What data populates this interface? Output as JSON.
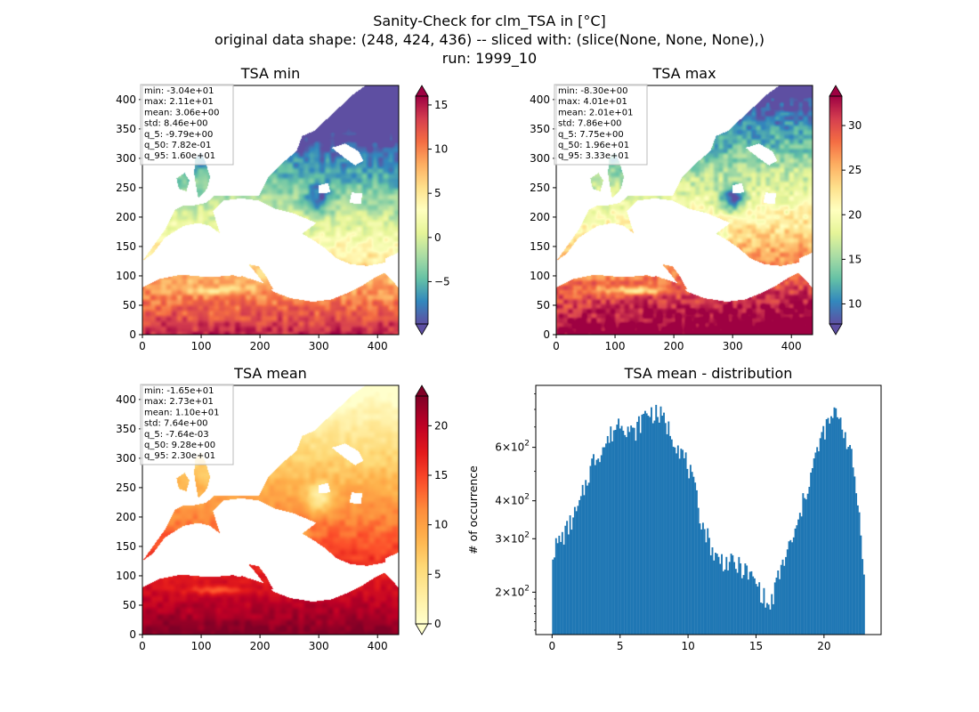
{
  "figure": {
    "title_lines": [
      "Sanity-Check for clm_TSA in [°C]",
      "original data shape: (248, 424, 436) -- sliced with: (slice(None, None, None),)",
      "run: 1999_10"
    ]
  },
  "chart_data": [
    {
      "type": "heatmap",
      "title": "TSA min",
      "xlim": [
        0,
        436
      ],
      "ylim": [
        0,
        424
      ],
      "xticks": [
        0,
        100,
        200,
        300,
        400
      ],
      "yticks": [
        0,
        50,
        100,
        150,
        200,
        250,
        300,
        350,
        400
      ],
      "xtick_labels": [
        "0",
        "100",
        "200",
        "300",
        "400"
      ],
      "ytick_labels": [
        "0",
        "50",
        "100",
        "150",
        "200",
        "250",
        "300",
        "350",
        "400"
      ],
      "colormap": "Spectral_r",
      "colorbar": {
        "range": [
          -9.79,
          16.0
        ],
        "ticks": [
          -5,
          0,
          5,
          10,
          15
        ],
        "tick_labels": [
          "−5",
          "0",
          "5",
          "10",
          "15"
        ],
        "extend": "both"
      },
      "stats": [
        "min: -3.04e+01",
        "max: 2.11e+01",
        "mean: 3.06e+00",
        "std: 8.46e+00",
        "q_5: -9.79e+00",
        "q_50: 7.82e-01",
        "q_95: 1.60e+01"
      ]
    },
    {
      "type": "heatmap",
      "title": "TSA max",
      "xlim": [
        0,
        436
      ],
      "ylim": [
        0,
        424
      ],
      "xticks": [
        0,
        100,
        200,
        300,
        400
      ],
      "yticks": [
        0,
        50,
        100,
        150,
        200,
        250,
        300,
        350,
        400
      ],
      "xtick_labels": [
        "0",
        "100",
        "200",
        "300",
        "400"
      ],
      "ytick_labels": [
        "0",
        "50",
        "100",
        "150",
        "200",
        "250",
        "300",
        "350",
        "400"
      ],
      "colormap": "Spectral_r",
      "colorbar": {
        "range": [
          7.75,
          33.3
        ],
        "ticks": [
          10,
          15,
          20,
          25,
          30
        ],
        "tick_labels": [
          "10",
          "15",
          "20",
          "25",
          "30"
        ],
        "extend": "both"
      },
      "stats": [
        "min: -8.30e+00",
        "max: 4.01e+01",
        "mean: 2.01e+01",
        "std: 7.86e+00",
        "q_5: 7.75e+00",
        "q_50: 1.96e+01",
        "q_95: 3.33e+01"
      ]
    },
    {
      "type": "heatmap",
      "title": "TSA mean",
      "xlim": [
        0,
        436
      ],
      "ylim": [
        0,
        424
      ],
      "xticks": [
        0,
        100,
        200,
        300,
        400
      ],
      "yticks": [
        0,
        50,
        100,
        150,
        200,
        250,
        300,
        350,
        400
      ],
      "xtick_labels": [
        "0",
        "100",
        "200",
        "300",
        "400"
      ],
      "ytick_labels": [
        "0",
        "50",
        "100",
        "150",
        "200",
        "250",
        "300",
        "350",
        "400"
      ],
      "colormap": "YlOrRd",
      "colorbar": {
        "range": [
          -0.00764,
          23.0
        ],
        "ticks": [
          0,
          5,
          10,
          15,
          20
        ],
        "tick_labels": [
          "0",
          "5",
          "10",
          "15",
          "20"
        ],
        "extend": "both"
      },
      "stats": [
        "min: -1.65e+01",
        "max: 2.73e+01",
        "mean: 1.10e+01",
        "std: 7.64e+00",
        "q_5: -7.64e-03",
        "q_50: 9.28e+00",
        "q_95: 2.30e+01"
      ]
    },
    {
      "type": "bar",
      "title": "TSA mean - distribution",
      "ylabel": "# of occurrence",
      "yscale": "log",
      "xlim": [
        -1.2,
        24.2
      ],
      "ylim": [
        145,
        960
      ],
      "xticks": [
        0,
        5,
        10,
        15,
        20
      ],
      "xtick_labels": [
        "0",
        "5",
        "10",
        "15",
        "20"
      ],
      "yticks": [
        200,
        300,
        400,
        600
      ],
      "ytick_labels": [
        [
          "2",
          "2"
        ],
        [
          "3",
          "2"
        ],
        [
          "4",
          "2"
        ],
        [
          "6",
          "2"
        ]
      ],
      "ytick_base": "×10",
      "color": "#1f77b4",
      "bin_range": [
        0.0,
        23.0
      ],
      "bins": 200,
      "anchors": [
        [
          0.0,
          270
        ],
        [
          1.0,
          315
        ],
        [
          2.0,
          380
        ],
        [
          3.0,
          540
        ],
        [
          4.0,
          620
        ],
        [
          5.0,
          740
        ],
        [
          6.0,
          660
        ],
        [
          7.0,
          790
        ],
        [
          8.0,
          760
        ],
        [
          9.0,
          640
        ],
        [
          10.0,
          520
        ],
        [
          11.0,
          340
        ],
        [
          12.0,
          260
        ],
        [
          13.0,
          250
        ],
        [
          14.0,
          240
        ],
        [
          15.0,
          215
        ],
        [
          16.0,
          175
        ],
        [
          17.0,
          250
        ],
        [
          18.0,
          320
        ],
        [
          19.0,
          480
        ],
        [
          20.0,
          680
        ],
        [
          21.0,
          790
        ],
        [
          22.0,
          560
        ],
        [
          23.0,
          220
        ]
      ]
    }
  ]
}
